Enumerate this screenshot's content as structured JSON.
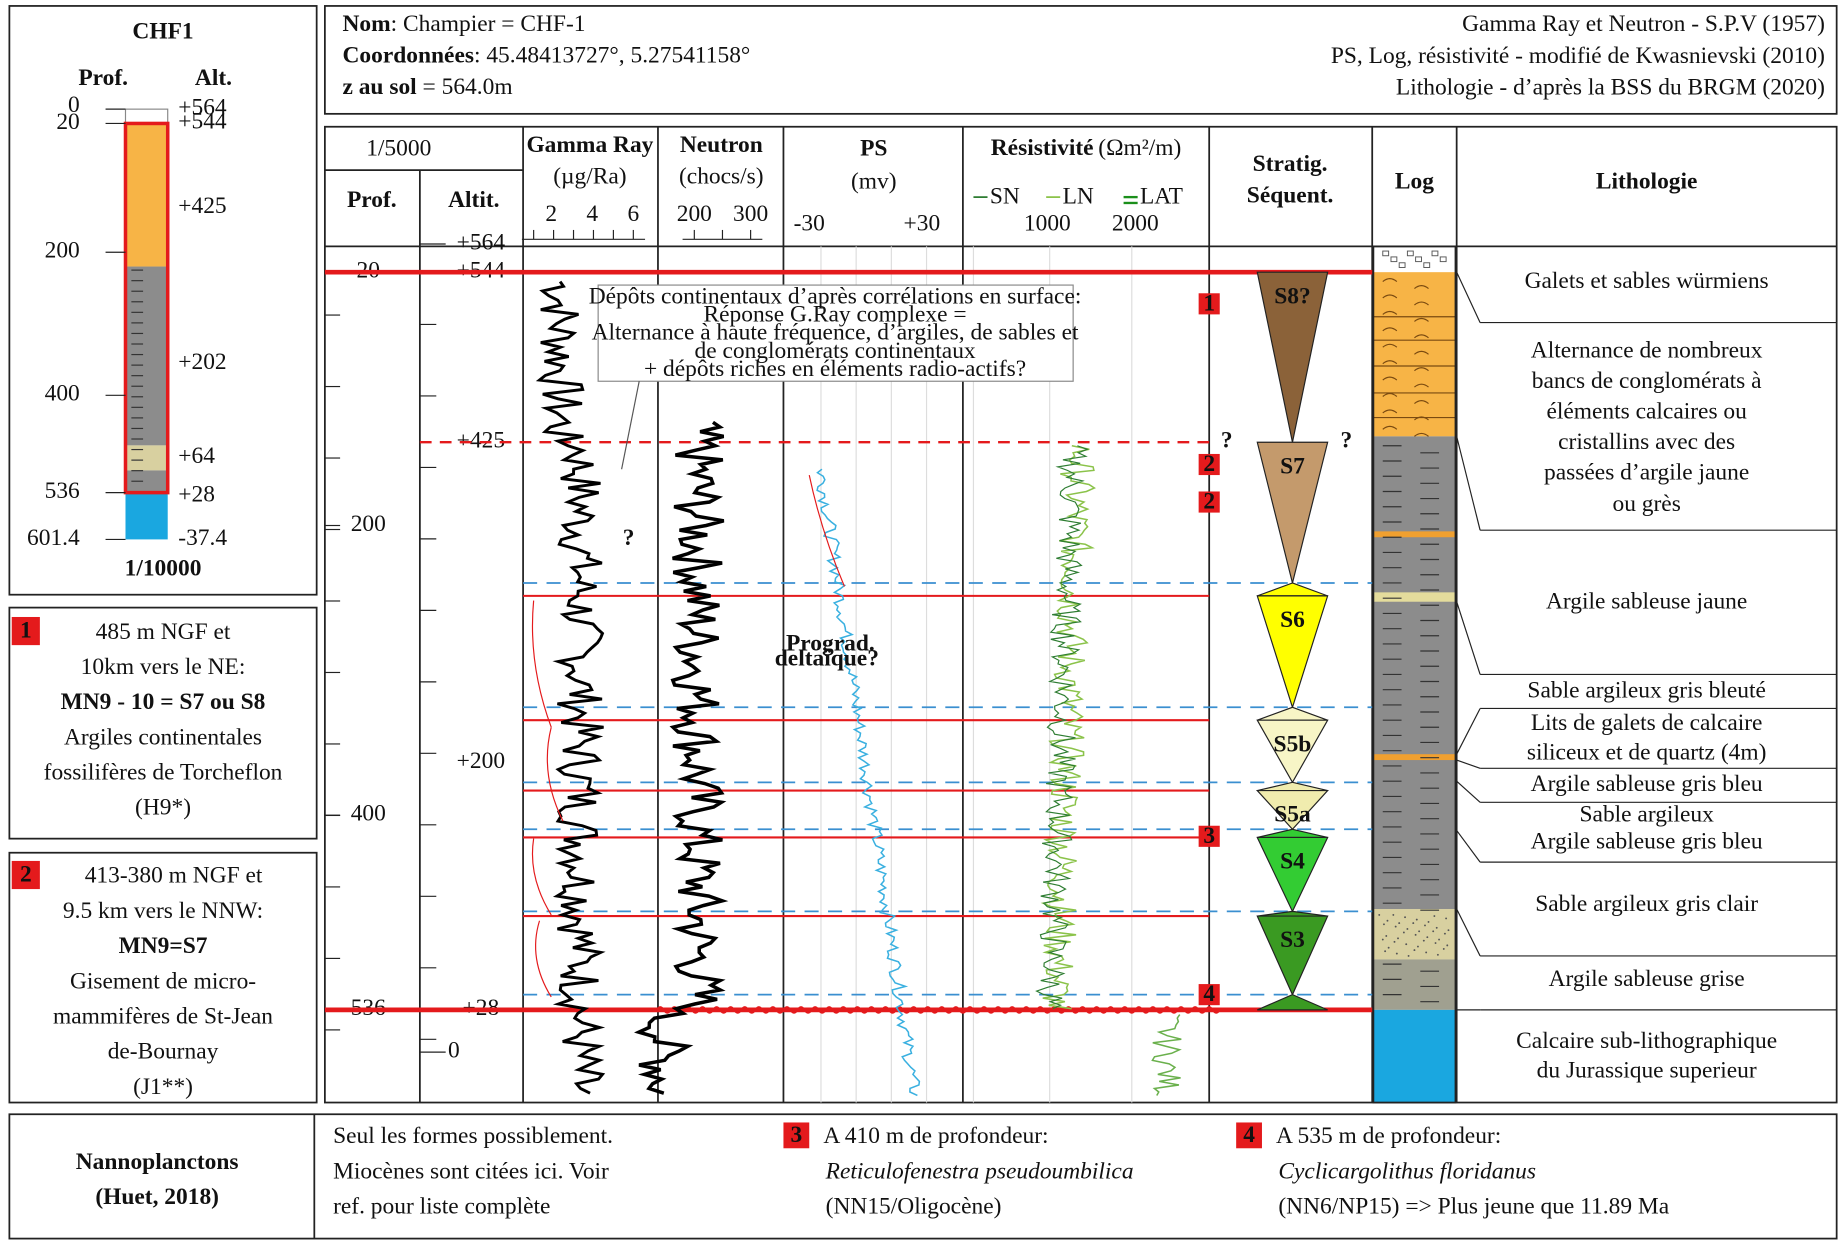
{
  "left_panel": {
    "title": "CHF1",
    "prof_label": "Prof.",
    "alt_label": "Alt.",
    "depth_labels": [
      "0",
      "20",
      "200",
      "400",
      "536",
      "601.4"
    ],
    "alt_labels": [
      "+564",
      "+544",
      "+425",
      "+202",
      "+64",
      "+28",
      "-37.4"
    ],
    "scale": "1/10000"
  },
  "notes": [
    {
      "number": "1",
      "lines": [
        "485 m NGF et",
        "10km vers le NE:",
        "MN9 - 10 = S7 ou S8",
        "Argiles continentales",
        "fossilifères de Torcheflon",
        "(H9*)"
      ]
    },
    {
      "number": "2",
      "lines": [
        "413-380 m NGF et",
        "9.5 km vers le NNW:",
        "MN9=S7",
        "Gisement de micro-",
        "mammifères de St-Jean",
        "de-Bournay",
        "(J1**)"
      ]
    }
  ],
  "header": {
    "left": [
      {
        "label": "Nom",
        "value": ": Champier = CHF-1"
      },
      {
        "label": "Coordonnées",
        "value": ": 45.48413727°, 5.27541158°"
      },
      {
        "label": "z au sol",
        "value": " = 564.0m"
      }
    ],
    "right": [
      "Gamma Ray et Neutron - S.P.V (1957)",
      "PS, Log, résistivité - modifié de Kwasnievski (2010)",
      "Lithologie - d’après la BSS du BRGM (2020)"
    ]
  },
  "columns": {
    "scale": "1/5000",
    "prof": "Prof.",
    "altit": "Altit.",
    "gamma_title": "Gamma Ray",
    "gamma_unit": "(µg/Ra)",
    "gamma_ticks": [
      "2",
      "4",
      "6"
    ],
    "neutron_title": "Neutron",
    "neutron_unit": "(chocs/s)",
    "neutron_ticks": [
      "200",
      "300"
    ],
    "ps_title": "PS",
    "ps_unit": "(mv)",
    "ps_ticks": [
      "-30",
      "+30"
    ],
    "res_title": "Résistivité",
    "res_unit": "(Ωm²/m)",
    "res_legend": [
      "SN",
      "LN",
      "LAT"
    ],
    "res_ticks": [
      "1000",
      "2000"
    ],
    "strat_title": [
      "Stratig.",
      "Séquent."
    ],
    "log_title": "Log",
    "litho_title": "Lithologie"
  },
  "depth_labels": [
    "20",
    "200",
    "400",
    "536"
  ],
  "alt_labels": [
    "+564",
    "+544",
    "+425",
    "+200",
    "+28",
    "0"
  ],
  "sequences": [
    "S8?",
    "S7",
    "S6",
    "S5b",
    "S5a",
    "S4",
    "S3"
  ],
  "markers": [
    "1",
    "2",
    "2",
    "3",
    "4"
  ],
  "question_marks": [
    "?",
    "?",
    "?"
  ],
  "annotation": {
    "lines": [
      "Dépôts continentaux d’après corrélations en surface:",
      "Réponse G.Ray complexe =",
      "Alternance à haute fréquence, d’argiles, de sables et",
      "de conglomérats continentaux",
      "+ dépôts riches en éléments radio-actifs?"
    ]
  },
  "prograd": [
    "Prograd.",
    "deltaïque?"
  ],
  "lithology": [
    [
      "Galets et sables würmiens"
    ],
    [
      "Alternance de nombreux",
      "bancs de conglomérats à",
      "éléments calcaires ou",
      "cristallins avec des",
      "passées d’argile jaune",
      "ou grès"
    ],
    [
      "Argile sableuse jaune"
    ],
    [
      "Sable argileux gris bleuté"
    ],
    [
      "Lits de galets de calcaire",
      "siliceux et de quartz (4m)"
    ],
    [
      "Argile sableuse gris bleu"
    ],
    [
      "Sable argileux",
      "Argile sableuse gris bleu"
    ],
    [
      "Sable argileux gris clair"
    ],
    [
      "Argile sableuse grise"
    ],
    [
      "Calcaire sub-lithographique",
      "du Jurassique superieur"
    ]
  ],
  "footer": {
    "title": [
      "Nannoplanctons",
      "(Huet, 2018)"
    ],
    "text": [
      "Seul les formes possiblement.",
      "Miocènes sont citées ici. Voir",
      "ref. pour liste complète"
    ],
    "notes": [
      {
        "number": "3",
        "lines": [
          "A 410 m de profondeur:",
          "Reticulofenestra pseudoumbilica",
          "(NN15/Oligocène)"
        ]
      },
      {
        "number": "4",
        "lines": [
          "A 535 m de profondeur:",
          "Cyclicargolithus floridanus",
          "(NN6/NP15) => Plus jeune que 11.89 Ma"
        ]
      }
    ]
  }
}
